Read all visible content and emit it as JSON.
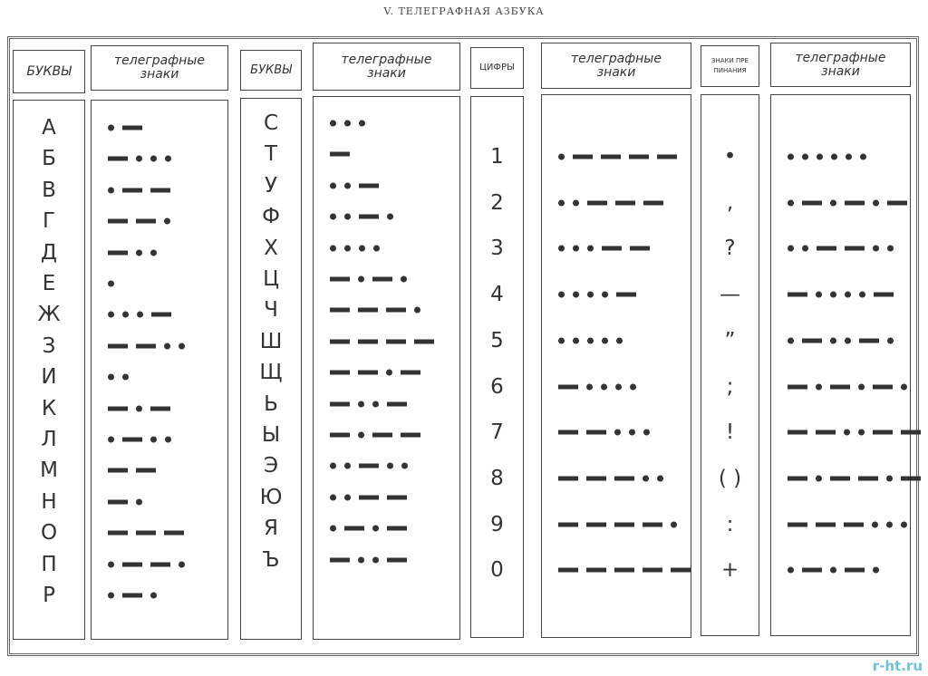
{
  "title": "V. ТЕЛЕГРАФНАЯ АЗБУКА",
  "headers": {
    "letters": "БУКВЫ",
    "codes_line1": "телеграфные",
    "codes_line2": "знаки",
    "digits": "ЦИФРЫ",
    "punct_line1": "ЗНАКИ ПРЕ",
    "punct_line2": "ПИНАНИЯ"
  },
  "letters_a": [
    {
      "char": "А",
      "code": ".-"
    },
    {
      "char": "Б",
      "code": "-..."
    },
    {
      "char": "В",
      "code": ".--"
    },
    {
      "char": "Г",
      "code": "--."
    },
    {
      "char": "Д",
      "code": "-.."
    },
    {
      "char": "Е",
      "code": "."
    },
    {
      "char": "Ж",
      "code": "...-"
    },
    {
      "char": "З",
      "code": "--.."
    },
    {
      "char": "И",
      "code": ".."
    },
    {
      "char": "К",
      "code": "-.-"
    },
    {
      "char": "Л",
      "code": ".-.."
    },
    {
      "char": "М",
      "code": "--"
    },
    {
      "char": "Н",
      "code": "-."
    },
    {
      "char": "О",
      "code": "---"
    },
    {
      "char": "П",
      "code": ".--."
    },
    {
      "char": "Р",
      "code": ".-."
    }
  ],
  "letters_b": [
    {
      "char": "С",
      "code": "..."
    },
    {
      "char": "Т",
      "code": "-"
    },
    {
      "char": "У",
      "code": "..-"
    },
    {
      "char": "Ф",
      "code": "..-."
    },
    {
      "char": "Х",
      "code": "...."
    },
    {
      "char": "Ц",
      "code": "-.-."
    },
    {
      "char": "Ч",
      "code": "---."
    },
    {
      "char": "Ш",
      "code": "----"
    },
    {
      "char": "Щ",
      "code": "--.-"
    },
    {
      "char": "Ь",
      "code": "-..-"
    },
    {
      "char": "Ы",
      "code": "-.--"
    },
    {
      "char": "Э",
      "code": "..-.."
    },
    {
      "char": "Ю",
      "code": "..--"
    },
    {
      "char": "Я",
      "code": ".-.-"
    },
    {
      "char": "Ъ",
      "code": "-..-"
    }
  ],
  "digits": [
    {
      "char": "1",
      "code": ".----"
    },
    {
      "char": "2",
      "code": "..---"
    },
    {
      "char": "3",
      "code": "...--"
    },
    {
      "char": "4",
      "code": "....-"
    },
    {
      "char": "5",
      "code": "....."
    },
    {
      "char": "6",
      "code": "-...."
    },
    {
      "char": "7",
      "code": "--..."
    },
    {
      "char": "8",
      "code": "---.."
    },
    {
      "char": "9",
      "code": "----."
    },
    {
      "char": "0",
      "code": "-----"
    }
  ],
  "punctuation": [
    {
      "char": "•",
      "code": "......"
    },
    {
      "char": ",",
      "code": ".-.-.-"
    },
    {
      "char": "?",
      "code": "..--.."
    },
    {
      "char": "—",
      "code": "-....-"
    },
    {
      "char": "”",
      "code": ".-..-."
    },
    {
      "char": ";",
      "code": "-.-.-."
    },
    {
      "char": "!",
      "code": "--..--"
    },
    {
      "char": "( )",
      "code": "-.--.-"
    },
    {
      "char": ":",
      "code": "---..."
    },
    {
      "char": "+",
      "code": ".-.-."
    }
  ],
  "watermark": "r-ht.ru"
}
